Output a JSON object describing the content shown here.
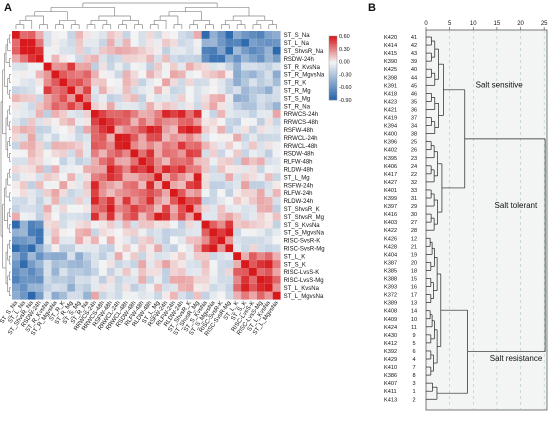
{
  "panel_a": {
    "letter": "A",
    "row_labels": [
      "ST_S_Na",
      "ST_L_Na",
      "ST_ShvsR_Na",
      "RSDW-24h",
      "ST_R_KvsNa",
      "ST_R_MgvsNa",
      "ST_R_K",
      "ST_R_Mg",
      "ST_S_Mg",
      "ST_R_Na",
      "RRWCS-24h",
      "RRWCS-48h",
      "RSFW-48h",
      "RRWCL-24h",
      "RRWCL-48h",
      "RSDW-48h",
      "RLFW-48h",
      "RLDW-48h",
      "ST_L_Mg",
      "RSFW-24h",
      "RLFW-24h",
      "RLDW-24h",
      "ST_ShvsR_K",
      "ST_ShvsR_Mg",
      "ST_S_KvsNa",
      "ST_S_MgvsNa",
      "RISC-SvsR-K",
      "RISC-SvsR-Mg",
      "ST_L_K",
      "ST_S_K",
      "RISC-LvsS-K",
      "RISC-LvsS-Mg",
      "ST_L_KvsNa",
      "ST_L_MgvsNa"
    ],
    "colorbar_ticks": [
      "0.60",
      "0.30",
      "0.00",
      "-0.30",
      "-0.60",
      "-0.90"
    ],
    "colors": {
      "negative": "#1f5fa8",
      "positive": "#d7191c",
      "neutral": "#f4f4f4"
    }
  },
  "panel_b": {
    "letter": "B",
    "axis_ticks": [
      "0",
      "5",
      "10",
      "15",
      "20",
      "25"
    ],
    "leaves": [
      {
        "name": "K420",
        "id": "41"
      },
      {
        "name": "K414",
        "id": "42"
      },
      {
        "name": "K415",
        "id": "43"
      },
      {
        "name": "K390",
        "id": "39"
      },
      {
        "name": "K425",
        "id": "40"
      },
      {
        "name": "K398",
        "id": "44"
      },
      {
        "name": "K391",
        "id": "45"
      },
      {
        "name": "K418",
        "id": "46"
      },
      {
        "name": "K423",
        "id": "35"
      },
      {
        "name": "K421",
        "id": "36"
      },
      {
        "name": "K419",
        "id": "37"
      },
      {
        "name": "K394",
        "id": "34"
      },
      {
        "name": "K400",
        "id": "38"
      },
      {
        "name": "K396",
        "id": "25"
      },
      {
        "name": "K402",
        "id": "26"
      },
      {
        "name": "K395",
        "id": "23"
      },
      {
        "name": "K406",
        "id": "24"
      },
      {
        "name": "K417",
        "id": "22"
      },
      {
        "name": "K427",
        "id": "32"
      },
      {
        "name": "K401",
        "id": "33"
      },
      {
        "name": "K399",
        "id": "31"
      },
      {
        "name": "K397",
        "id": "29"
      },
      {
        "name": "K416",
        "id": "30"
      },
      {
        "name": "K403",
        "id": "27"
      },
      {
        "name": "K422",
        "id": "28"
      },
      {
        "name": "K426",
        "id": "12"
      },
      {
        "name": "K428",
        "id": "21"
      },
      {
        "name": "K404",
        "id": "19"
      },
      {
        "name": "K387",
        "id": "20"
      },
      {
        "name": "K385",
        "id": "18"
      },
      {
        "name": "K388",
        "id": "15"
      },
      {
        "name": "K393",
        "id": "16"
      },
      {
        "name": "K372",
        "id": "17"
      },
      {
        "name": "K389",
        "id": "13"
      },
      {
        "name": "K408",
        "id": "14"
      },
      {
        "name": "K409",
        "id": "10"
      },
      {
        "name": "K424",
        "id": "11"
      },
      {
        "name": "K430",
        "id": "9"
      },
      {
        "name": "K412",
        "id": "5"
      },
      {
        "name": "K392",
        "id": "6"
      },
      {
        "name": "K429",
        "id": "4"
      },
      {
        "name": "K410",
        "id": "7"
      },
      {
        "name": "K386",
        "id": "8"
      },
      {
        "name": "K407",
        "id": "3"
      },
      {
        "name": "K411",
        "id": "1"
      },
      {
        "name": "K413",
        "id": "2"
      }
    ],
    "clusters": {
      "sensitive": "Salt sensitive",
      "tolerant": "Salt tolerant",
      "resistance": "Salt resistance"
    }
  }
}
